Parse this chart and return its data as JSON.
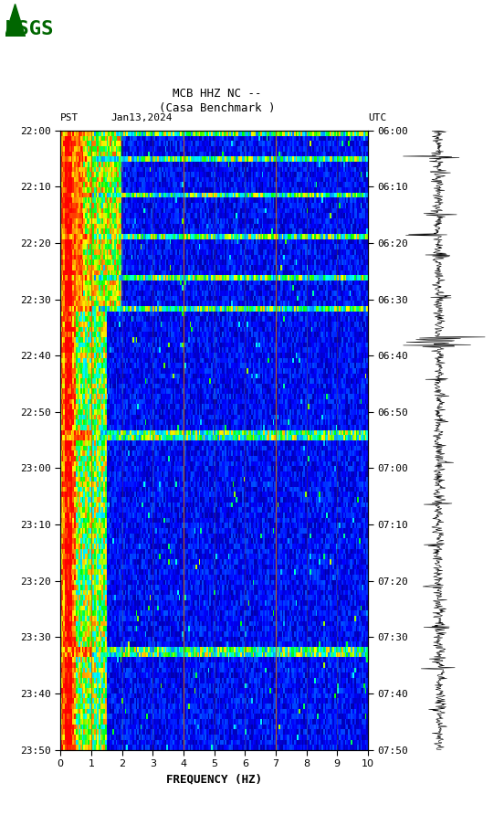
{
  "title_line1": "MCB HHZ NC --",
  "title_line2": "(Casa Benchmark )",
  "date_label": "Jan13,2024",
  "left_tz": "PST",
  "right_tz": "UTC",
  "left_times": [
    "22:00",
    "22:10",
    "22:20",
    "22:30",
    "22:40",
    "22:50",
    "23:00",
    "23:10",
    "23:20",
    "23:30",
    "23:40",
    "23:50"
  ],
  "right_times": [
    "06:00",
    "06:10",
    "06:20",
    "06:30",
    "06:40",
    "06:50",
    "07:00",
    "07:10",
    "07:20",
    "07:30",
    "07:40",
    "07:50"
  ],
  "freq_min": 0,
  "freq_max": 10,
  "freq_ticks": [
    0,
    1,
    2,
    3,
    4,
    5,
    6,
    7,
    8,
    9,
    10
  ],
  "xlabel": "FREQUENCY (HZ)",
  "vertical_lines_freq": [
    1.0,
    4.0,
    7.0
  ],
  "background_color": "#000080",
  "fig_bg": "#ffffff",
  "usgs_color": "#006600"
}
